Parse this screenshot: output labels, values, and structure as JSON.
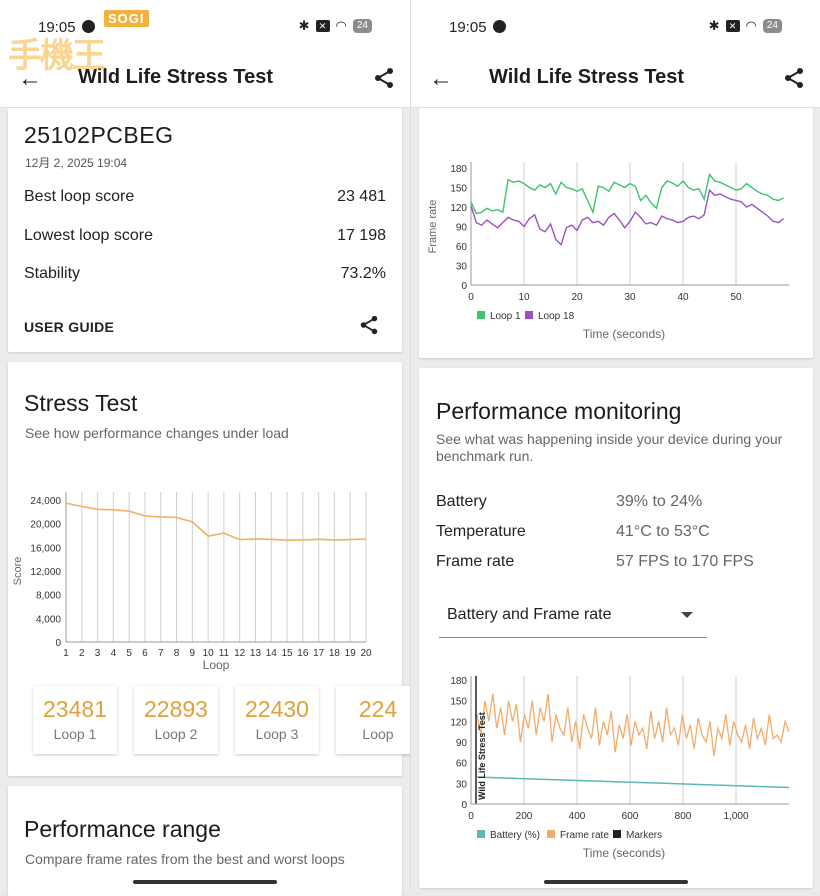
{
  "status": {
    "time": "19:05",
    "battery": "24"
  },
  "app": {
    "title": "Wild Life Stress Test"
  },
  "watermark": {
    "brand": "SOGI",
    "text": "手機王"
  },
  "device": {
    "model": "25102PCBEG",
    "date": "12月 2, 2025 19:04",
    "best_label": "Best loop score",
    "best_value": "23 481",
    "lowest_label": "Lowest loop score",
    "lowest_value": "17 198",
    "stability_label": "Stability",
    "stability_value": "73.2%",
    "user_guide": "USER GUIDE"
  },
  "stress": {
    "title": "Stress Test",
    "subtitle": "See how performance changes under load",
    "loops": [
      {
        "value": "23481",
        "label": "Loop 1"
      },
      {
        "value": "22893",
        "label": "Loop 2"
      },
      {
        "value": "22430",
        "label": "Loop 3"
      },
      {
        "value": "224",
        "label": "Loop"
      }
    ]
  },
  "range": {
    "title": "Performance range",
    "subtitle": "Compare frame rates from the best and worst loops"
  },
  "monitoring": {
    "title": "Performance monitoring",
    "subtitle": "See what was happening inside your device during your benchmark run.",
    "battery_label": "Battery",
    "battery_value": "39% to 24%",
    "temp_label": "Temperature",
    "temp_value": "41°C to 53°C",
    "fps_label": "Frame rate",
    "fps_value": "57 FPS to 170 FPS",
    "dropdown": "Battery and Frame rate"
  },
  "colors": {
    "score_line": "#f2b060",
    "loop1": "#3cc46e",
    "loop18": "#9b52c0",
    "battery": "#5bb9b5",
    "framerate": "#f2ac6a",
    "marker": "#222222"
  },
  "chart_data": [
    {
      "id": "score",
      "type": "line",
      "title": "",
      "xlabel": "Loop",
      "ylabel": "Score",
      "categories": [
        "1",
        "2",
        "3",
        "4",
        "5",
        "6",
        "7",
        "8",
        "9",
        "10",
        "11",
        "12",
        "13",
        "14",
        "15",
        "16",
        "17",
        "18",
        "19",
        "20"
      ],
      "ytick_labels": [
        "0",
        "4,000",
        "8,000",
        "12,000",
        "16,000",
        "20,000",
        "24,000"
      ],
      "ylim": [
        0,
        24000
      ],
      "series": [
        {
          "name": "Score",
          "values": [
            23481,
            22893,
            22430,
            22350,
            22100,
            21300,
            21150,
            21050,
            20300,
            17900,
            18400,
            17300,
            17400,
            17350,
            17200,
            17250,
            17350,
            17250,
            17300,
            17400
          ]
        }
      ]
    },
    {
      "id": "loops-fps",
      "type": "line",
      "xlabel": "Time (seconds)",
      "ylabel": "Frame rate",
      "xtick_labels": [
        "0",
        "10",
        "20",
        "30",
        "40",
        "50"
      ],
      "ytick_labels": [
        "0",
        "30",
        "60",
        "90",
        "120",
        "150",
        "180"
      ],
      "xlim": [
        0,
        60
      ],
      "ylim": [
        0,
        180
      ],
      "series": [
        {
          "name": "Loop 1",
          "values": [
            128,
            110,
            112,
            118,
            114,
            116,
            112,
            162,
            158,
            160,
            156,
            150,
            146,
            154,
            150,
            156,
            140,
            158,
            150,
            148,
            144,
            148,
            130,
            112,
            152,
            150,
            144,
            158,
            154,
            150,
            156,
            152,
            130,
            138,
            126,
            118,
            150,
            160,
            157,
            152,
            160,
            150,
            146,
            148,
            132,
            170,
            160,
            158,
            154,
            150,
            146,
            148,
            156,
            150,
            144,
            140,
            138,
            132,
            130,
            134
          ]
        },
        {
          "name": "Loop 18",
          "values": [
            122,
            96,
            92,
            100,
            94,
            88,
            96,
            104,
            100,
            98,
            90,
            102,
            108,
            86,
            82,
            94,
            70,
            62,
            88,
            92,
            84,
            100,
            104,
            96,
            98,
            92,
            104,
            110,
            100,
            88,
            98,
            112,
            104,
            94,
            96,
            92,
            106,
            102,
            100,
            96,
            98,
            104,
            106,
            102,
            108,
            146,
            138,
            140,
            136,
            132,
            130,
            128,
            120,
            124,
            118,
            112,
            106,
            98,
            96,
            102
          ]
        }
      ],
      "legend": [
        "Loop 1",
        "Loop 18"
      ]
    },
    {
      "id": "battery-fps",
      "type": "line",
      "xlabel": "Time (seconds)",
      "ylabel": "",
      "xtick_labels": [
        "0",
        "200",
        "400",
        "600",
        "800",
        "1,000"
      ],
      "ytick_labels": [
        "0",
        "30",
        "60",
        "90",
        "120",
        "150",
        "180"
      ],
      "xlim": [
        0,
        1200
      ],
      "ylim": [
        0,
        180
      ],
      "marker_label": "Wild Life Stress Test",
      "series": [
        {
          "name": "Battery (%)",
          "values": [
            39,
            38,
            37,
            36,
            35,
            34,
            33,
            32,
            31,
            30,
            29,
            28,
            27,
            26,
            25,
            24
          ]
        },
        {
          "name": "Frame rate",
          "values": [
            130,
            100,
            150,
            120,
            160,
            110,
            140,
            100,
            150,
            120,
            145,
            90,
            130,
            110,
            150,
            100,
            140,
            120,
            160,
            90,
            130,
            110,
            100,
            140,
            90,
            120,
            80,
            130,
            110,
            95,
            140,
            85,
            120,
            100,
            135,
            75,
            115,
            95,
            130,
            85,
            120,
            100,
            110,
            80,
            135,
            95,
            120,
            90,
            140,
            100,
            110,
            85,
            130,
            95,
            115,
            80,
            125,
            100,
            90,
            120,
            70,
            110,
            95,
            130,
            85,
            120,
            100,
            90,
            115,
            80,
            125,
            95,
            110,
            85,
            130,
            95,
            100,
            90,
            120,
            105
          ]
        }
      ],
      "legend": [
        "Battery (%)",
        "Frame rate",
        "Markers"
      ]
    }
  ]
}
